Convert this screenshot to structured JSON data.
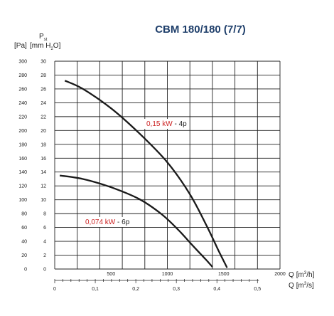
{
  "title": "CBM 180/180 (7/7)",
  "y_axis": {
    "symbol": "P",
    "symbol_sub": "st",
    "pa_unit": "[Pa]",
    "mm_unit_a": "[mm H",
    "mm_unit_b": "2",
    "mm_unit_c": "O]"
  },
  "x_axis": {
    "q1_name": "Q",
    "q1_unit_a": "[m",
    "q1_unit_b": "3",
    "q1_unit_c": "/h]",
    "q2_name": "Q",
    "q2_unit_a": "[m",
    "q2_unit_b": "3",
    "q2_unit_c": "/s]"
  },
  "colors": {
    "title": "#1f3f6b",
    "kw_text": "#cc2222",
    "curve": "#1a1a1a"
  },
  "chart_data": {
    "type": "line",
    "title": "CBM 180/180 (7/7)",
    "x": {
      "label": "Q [m3/h]",
      "range": [
        0,
        2000
      ],
      "ticks": [
        "0",
        "500",
        "1000",
        "1500",
        "2000"
      ]
    },
    "x2": {
      "label": "Q [m3/s]",
      "range": [
        0,
        0.5556
      ],
      "ticks": [
        "0",
        "0,1",
        "0,2",
        "0,3",
        "0,4",
        "0,5"
      ]
    },
    "y": {
      "label": "[mm H2O]",
      "range": [
        0,
        30
      ],
      "ticks": [
        "0",
        "2",
        "4",
        "6",
        "8",
        "10",
        "12",
        "14",
        "16",
        "18",
        "20",
        "22",
        "24",
        "26",
        "28",
        "30"
      ]
    },
    "y2": {
      "label": "[Pa]",
      "range": [
        0,
        300
      ],
      "ticks": [
        "0",
        "20",
        "40",
        "60",
        "80",
        "100",
        "120",
        "140",
        "160",
        "180",
        "200",
        "220",
        "240",
        "260",
        "280",
        "300"
      ]
    },
    "grid": true,
    "series": [
      {
        "name": "0,15 kW - 4p",
        "kw": "0,15 kW",
        "poles": "4p",
        "points": [
          [
            90,
            27.2
          ],
          [
            250,
            26.0
          ],
          [
            500,
            23.2
          ],
          [
            750,
            19.6
          ],
          [
            1000,
            15.4
          ],
          [
            1200,
            10.8
          ],
          [
            1350,
            6.2
          ],
          [
            1450,
            2.8
          ],
          [
            1530,
            0.2
          ]
        ]
      },
      {
        "name": "0,074 kW - 6p",
        "kw": "0,074 kW",
        "poles": "6p",
        "points": [
          [
            45,
            13.5
          ],
          [
            250,
            13.0
          ],
          [
            500,
            11.8
          ],
          [
            750,
            10.1
          ],
          [
            950,
            7.9
          ],
          [
            1100,
            5.6
          ],
          [
            1230,
            3.3
          ],
          [
            1340,
            1.4
          ],
          [
            1400,
            0.3
          ]
        ]
      }
    ]
  }
}
